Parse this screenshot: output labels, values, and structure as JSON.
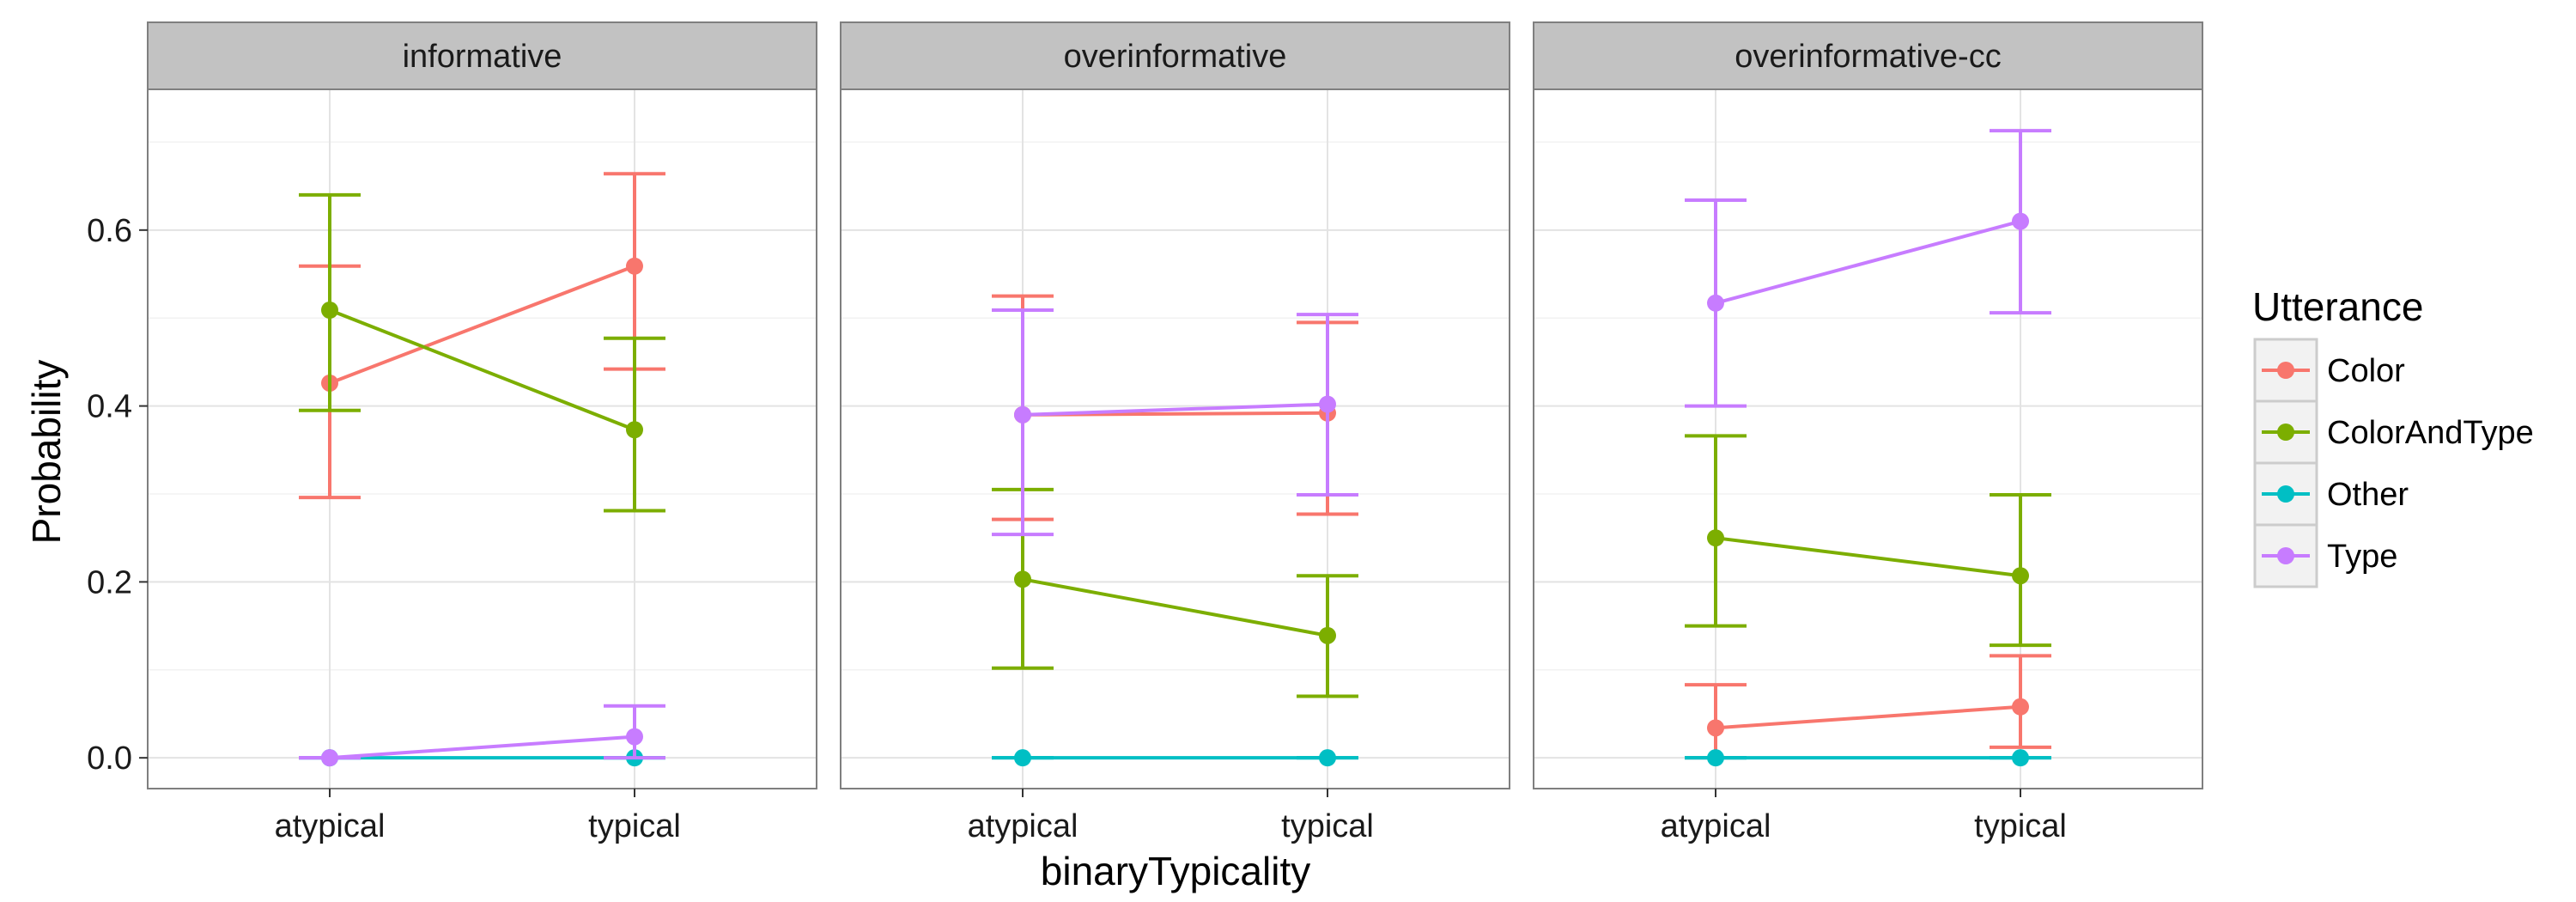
{
  "chart_data": {
    "type": "line",
    "facet_variable": "condition",
    "facets": [
      "informative",
      "overinformative",
      "overinformative-cc"
    ],
    "categories": [
      "atypical",
      "typical"
    ],
    "xlabel": "binaryTypicality",
    "ylabel": "Probability",
    "ylim": [
      -0.035,
      0.76
    ],
    "yticks": [
      0.0,
      0.2,
      0.4,
      0.6
    ],
    "ytick_labels": [
      "0.0",
      "0.2",
      "0.4",
      "0.6"
    ],
    "grid": true,
    "error_bars": true,
    "legend": {
      "title": "Utterance",
      "position": "right",
      "entries": [
        "Color",
        "ColorAndType",
        "Other",
        "Type"
      ]
    },
    "colors": {
      "Color": "#F8766D",
      "ColorAndType": "#7CAE00",
      "Other": "#00BFC4",
      "Type": "#C77CFF"
    },
    "panels": [
      {
        "facet": "informative",
        "series": [
          {
            "name": "Color",
            "values": [
              0.426,
              0.559
            ],
            "lower": [
              0.296,
              0.442
            ],
            "upper": [
              0.559,
              0.664
            ]
          },
          {
            "name": "ColorAndType",
            "values": [
              0.509,
              0.373
            ],
            "lower": [
              0.395,
              0.281
            ],
            "upper": [
              0.64,
              0.477
            ]
          },
          {
            "name": "Other",
            "values": [
              0.0,
              0.0
            ],
            "lower": [
              0.0,
              0.0
            ],
            "upper": [
              0.0,
              0.0
            ]
          },
          {
            "name": "Type",
            "values": [
              0.0,
              0.024
            ],
            "lower": [
              0.0,
              0.0
            ],
            "upper": [
              0.0,
              0.059
            ]
          }
        ]
      },
      {
        "facet": "overinformative",
        "series": [
          {
            "name": "Color",
            "values": [
              0.39,
              0.392
            ],
            "lower": [
              0.271,
              0.277
            ],
            "upper": [
              0.525,
              0.495
            ]
          },
          {
            "name": "ColorAndType",
            "values": [
              0.203,
              0.139
            ],
            "lower": [
              0.102,
              0.07
            ],
            "upper": [
              0.305,
              0.207
            ]
          },
          {
            "name": "Other",
            "values": [
              0.0,
              0.0
            ],
            "lower": [
              0.0,
              0.0
            ],
            "upper": [
              0.0,
              0.0
            ]
          },
          {
            "name": "Type",
            "values": [
              0.39,
              0.402
            ],
            "lower": [
              0.254,
              0.299
            ],
            "upper": [
              0.509,
              0.504
            ]
          }
        ]
      },
      {
        "facet": "overinformative-cc",
        "series": [
          {
            "name": "Color",
            "values": [
              0.034,
              0.058
            ],
            "lower": [
              0.0,
              0.012
            ],
            "upper": [
              0.083,
              0.116
            ]
          },
          {
            "name": "ColorAndType",
            "values": [
              0.25,
              0.207
            ],
            "lower": [
              0.15,
              0.128
            ],
            "upper": [
              0.366,
              0.299
            ]
          },
          {
            "name": "Other",
            "values": [
              0.0,
              0.0
            ],
            "lower": [
              0.0,
              0.0
            ],
            "upper": [
              0.0,
              0.0
            ]
          },
          {
            "name": "Type",
            "values": [
              0.517,
              0.61
            ],
            "lower": [
              0.4,
              0.506
            ],
            "upper": [
              0.634,
              0.713
            ]
          }
        ]
      }
    ]
  }
}
